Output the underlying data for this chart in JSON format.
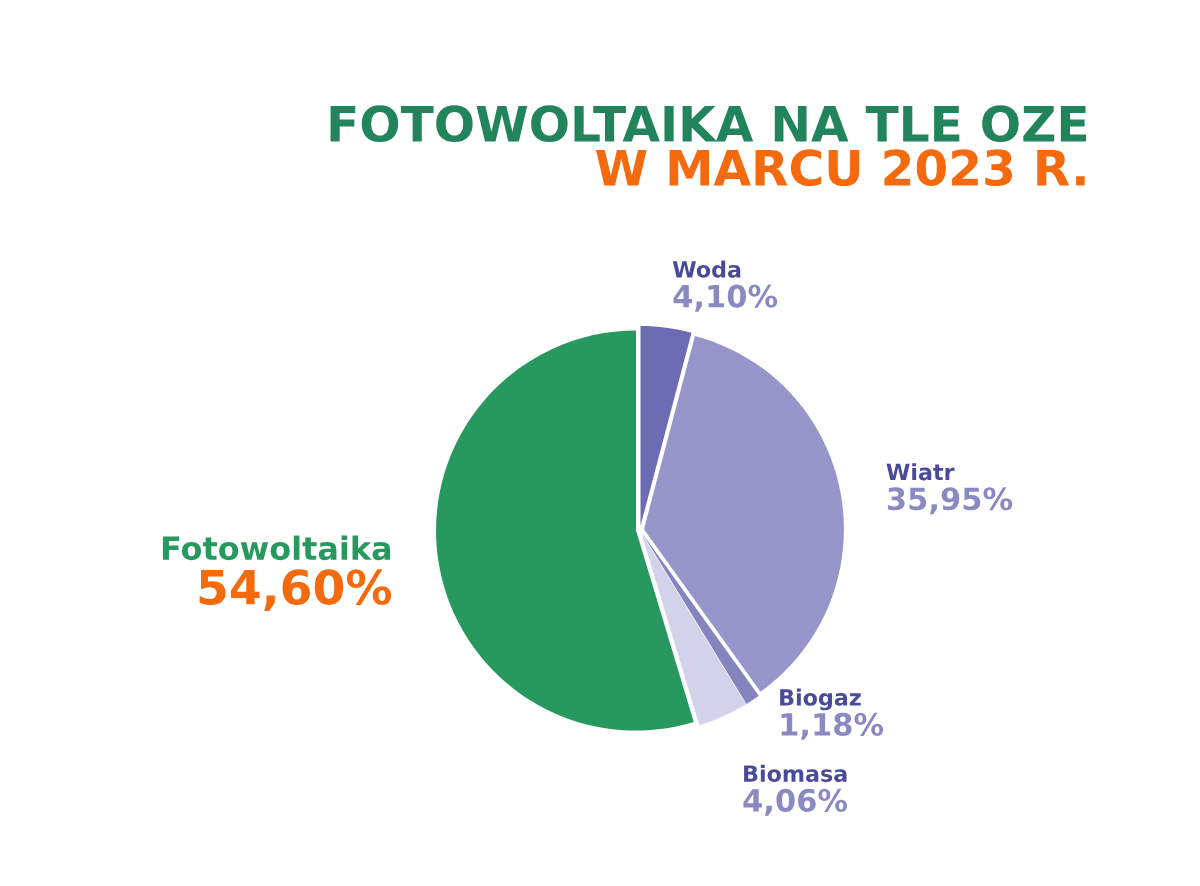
{
  "chart_data": {
    "type": "pie",
    "title": "FOTOWOLTAIKA NA TLE OZE",
    "subtitle": "W MARCU 2023 R.",
    "categories": [
      "Woda",
      "Wiatr",
      "Biogaz",
      "Biomasa",
      "Fotowoltaika"
    ],
    "values": [
      4.1,
      35.95,
      1.18,
      4.06,
      54.6
    ],
    "value_labels": [
      "4,10%",
      "35,95%",
      "1,18%",
      "4,06%",
      "54,60%"
    ],
    "colors": [
      "#6b6cb4",
      "#9796cb",
      "#8484bf",
      "#d2d2ea",
      "#27985e"
    ]
  }
}
